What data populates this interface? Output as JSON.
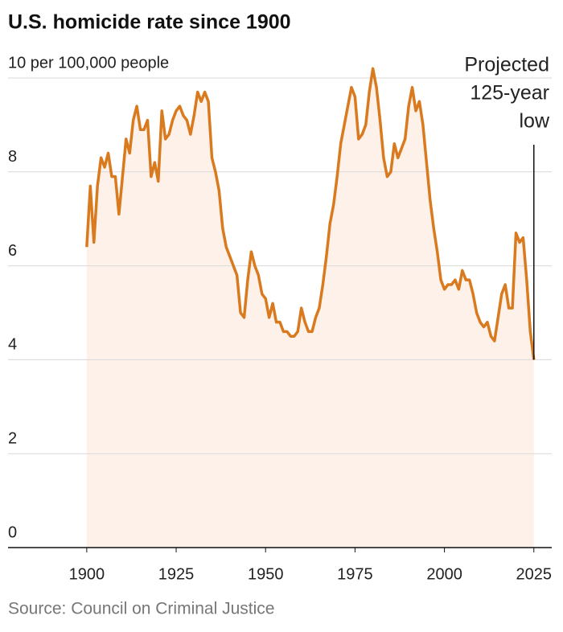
{
  "chart_data": {
    "type": "line",
    "title": "U.S. homicide rate since 1900",
    "source": "Source: Council on Criminal Justice",
    "annotation": [
      "Projected",
      "125-year",
      "low"
    ],
    "color": "#d97a1f",
    "fill": "#fdf1ea",
    "grid": true,
    "xlim": [
      1878,
      2030
    ],
    "xticks": [
      1900,
      1925,
      1950,
      1975,
      2000,
      2025
    ],
    "ylim": [
      0,
      10
    ],
    "yticks": [
      0,
      2,
      4,
      6,
      8,
      {
        "value": 10,
        "label": "10 per 100,000 people"
      }
    ],
    "x": [
      1900,
      1901,
      1902,
      1903,
      1904,
      1905,
      1906,
      1907,
      1908,
      1909,
      1910,
      1911,
      1912,
      1913,
      1914,
      1915,
      1916,
      1917,
      1918,
      1919,
      1920,
      1921,
      1922,
      1923,
      1924,
      1925,
      1926,
      1927,
      1928,
      1929,
      1930,
      1931,
      1932,
      1933,
      1934,
      1935,
      1936,
      1937,
      1938,
      1939,
      1940,
      1941,
      1942,
      1943,
      1944,
      1945,
      1946,
      1947,
      1948,
      1949,
      1950,
      1951,
      1952,
      1953,
      1954,
      1955,
      1956,
      1957,
      1958,
      1959,
      1960,
      1961,
      1962,
      1963,
      1964,
      1965,
      1966,
      1967,
      1968,
      1969,
      1970,
      1971,
      1972,
      1973,
      1974,
      1975,
      1976,
      1977,
      1978,
      1979,
      1980,
      1981,
      1982,
      1983,
      1984,
      1985,
      1986,
      1987,
      1988,
      1989,
      1990,
      1991,
      1992,
      1993,
      1994,
      1995,
      1996,
      1997,
      1998,
      1999,
      2000,
      2001,
      2002,
      2003,
      2004,
      2005,
      2006,
      2007,
      2008,
      2009,
      2010,
      2011,
      2012,
      2013,
      2014,
      2015,
      2016,
      2017,
      2018,
      2019,
      2020,
      2021,
      2022,
      2023,
      2024,
      2025
    ],
    "values": [
      6.4,
      7.7,
      6.5,
      7.7,
      8.3,
      8.1,
      8.4,
      7.9,
      7.9,
      7.1,
      7.9,
      8.7,
      8.4,
      9.1,
      9.4,
      8.9,
      8.9,
      9.1,
      7.9,
      8.2,
      7.8,
      9.3,
      8.7,
      8.8,
      9.1,
      9.3,
      9.4,
      9.2,
      9.1,
      8.8,
      9.2,
      9.7,
      9.5,
      9.7,
      9.5,
      8.3,
      8.0,
      7.6,
      6.8,
      6.4,
      6.2,
      6.0,
      5.8,
      5.0,
      4.9,
      5.7,
      6.3,
      6.0,
      5.8,
      5.4,
      5.3,
      4.9,
      5.2,
      4.8,
      4.8,
      4.6,
      4.6,
      4.5,
      4.5,
      4.6,
      5.1,
      4.8,
      4.6,
      4.6,
      4.9,
      5.1,
      5.6,
      6.2,
      6.9,
      7.3,
      7.9,
      8.6,
      9.0,
      9.4,
      9.8,
      9.6,
      8.7,
      8.8,
      9.0,
      9.7,
      10.2,
      9.8,
      9.1,
      8.3,
      7.9,
      8.0,
      8.6,
      8.3,
      8.5,
      8.7,
      9.4,
      9.8,
      9.3,
      9.5,
      9.0,
      8.2,
      7.4,
      6.8,
      6.3,
      5.7,
      5.5,
      5.6,
      5.6,
      5.7,
      5.5,
      5.9,
      5.7,
      5.7,
      5.4,
      5.0,
      4.8,
      4.7,
      4.8,
      4.5,
      4.4,
      4.9,
      5.4,
      5.6,
      5.1,
      5.1,
      6.7,
      6.5,
      6.6,
      5.7,
      4.6,
      4.0
    ]
  }
}
